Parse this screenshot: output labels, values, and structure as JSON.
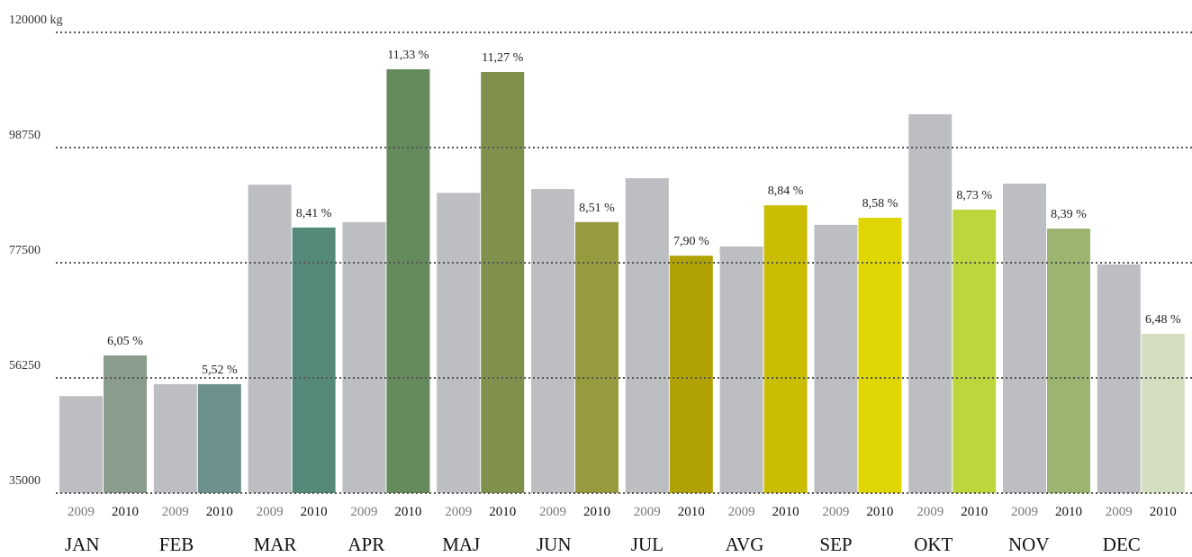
{
  "chart_data": {
    "type": "bar",
    "categories": [
      "JAN",
      "FEB",
      "MAR",
      "APR",
      "MAJ",
      "JUN",
      "JUL",
      "AVG",
      "SEP",
      "OKT",
      "NOV",
      "DEC"
    ],
    "series": [
      {
        "name": "2009",
        "color": "#bdbec2",
        "values": [
          52900,
          55100,
          91900,
          85000,
          90400,
          91100,
          93100,
          80500,
          84500,
          104900,
          92100,
          77200
        ]
      },
      {
        "name": "2010",
        "colors": [
          "#8a9c8c",
          "#6d918c",
          "#55897a",
          "#658a5c",
          "#7f914d",
          "#979a3e",
          "#b0a204",
          "#c9be04",
          "#e0d604",
          "#bdd63c",
          "#9bb570",
          "#d3dfc0"
        ],
        "values": [
          60400,
          55100,
          84000,
          113200,
          112700,
          85000,
          78800,
          88100,
          85800,
          87300,
          83800,
          64400
        ],
        "annotations": [
          "6,05 %",
          "5,52 %",
          "8,41 %",
          "11,33 %",
          "11,27 %",
          "8,51 %",
          "7,90 %",
          "8,84 %",
          "8,58 %",
          "8,73 %",
          "8,39 %",
          "6,48 %"
        ]
      }
    ],
    "ylim": [
      35000,
      120000
    ],
    "yticks": [
      35000,
      56250,
      77500,
      98750,
      {
        "value": 120000,
        "label": "120000 kg"
      }
    ],
    "grid": true
  }
}
